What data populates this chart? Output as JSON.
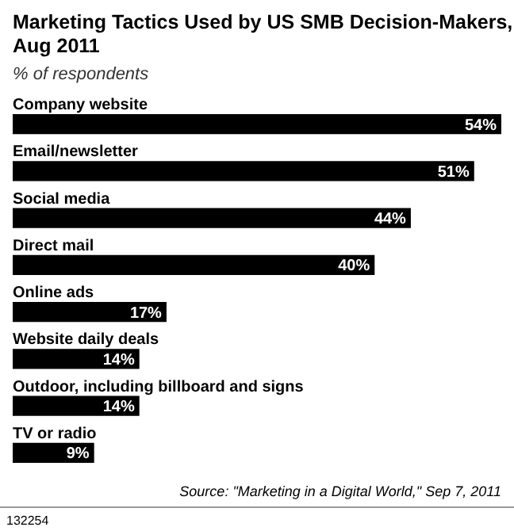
{
  "chart_data": {
    "type": "bar",
    "orientation": "horizontal",
    "title": "Marketing Tactics Used by US SMB Decision-Makers, Aug 2011",
    "subtitle": "% of respondents",
    "categories": [
      "Company website",
      "Email/newsletter",
      "Social media",
      "Direct mail",
      "Online ads",
      "Website daily deals",
      "Outdoor, including billboard and signs",
      "TV or radio"
    ],
    "values": [
      54,
      51,
      44,
      40,
      17,
      14,
      14,
      9
    ],
    "value_labels": [
      "54%",
      "51%",
      "44%",
      "40%",
      "17%",
      "14%",
      "14%",
      "9%"
    ],
    "color": "#000000",
    "grid": false,
    "annotations": [
      "Source: \"Marketing in a Digital World,\" Sep 7, 2011",
      "132254"
    ]
  }
}
